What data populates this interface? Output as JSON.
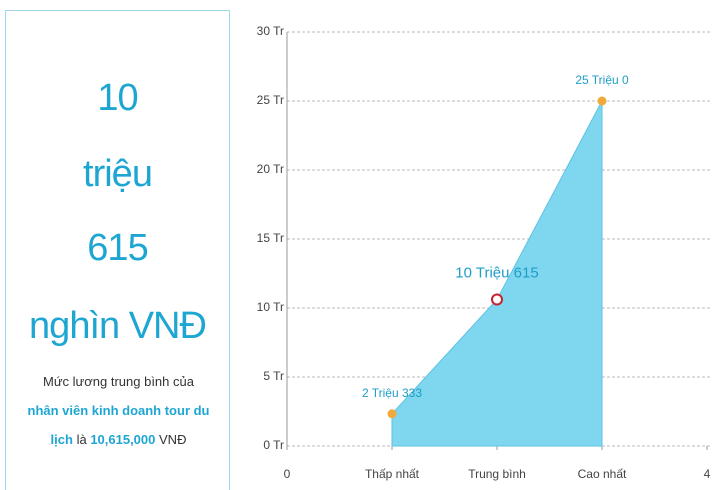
{
  "summary": {
    "lines": [
      "10",
      "triệu",
      "615",
      "nghìn VNĐ"
    ],
    "description": [
      "Mức lương trung bình của",
      "nhân viên kinh doanh tour du lịch",
      "là",
      "10,615,000",
      "VNĐ"
    ]
  },
  "chart_data": {
    "type": "area",
    "x": [
      1,
      2,
      3
    ],
    "series": [
      {
        "color": "#7fd6ef",
        "values": [
          2.333,
          10.615,
          25.0
        ],
        "value_labels": [
          "2 Triệu 333",
          "10 Triệu 615",
          "25 Triệu 0"
        ],
        "marker_colors": [
          "#f2a93b",
          "#c8202e",
          "#f2a93b"
        ],
        "marker_fills": [
          "#f2a93b",
          "#ffffff",
          "#f2a93b"
        ]
      }
    ],
    "xlim": [
      0,
      4
    ],
    "xticks": [
      0,
      {
        "value": 1,
        "label": "Thấp nhất"
      },
      {
        "value": 2,
        "label": "Trung bình"
      },
      {
        "value": 3,
        "label": "Cao nhất"
      },
      4
    ],
    "ylim": [
      0,
      30
    ],
    "yticks": [
      {
        "value": 0,
        "label": "0 Tr"
      },
      {
        "value": 5,
        "label": "5 Tr"
      },
      {
        "value": 10,
        "label": "10 Tr"
      },
      {
        "value": 15,
        "label": "15 Tr"
      },
      {
        "value": 20,
        "label": "20 Tr"
      },
      {
        "value": 25,
        "label": "25 Tr"
      },
      {
        "value": 30,
        "label": "30 Tr"
      }
    ],
    "grid": true
  }
}
